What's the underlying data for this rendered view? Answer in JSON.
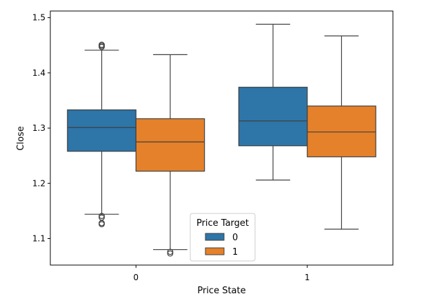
{
  "chart_data": {
    "type": "boxplot",
    "xlabel": "Price State",
    "ylabel": "Close",
    "categories": [
      "0",
      "1"
    ],
    "ylim": [
      1.052,
      1.512
    ],
    "yticks": [
      1.1,
      1.2,
      1.3,
      1.4,
      1.5
    ],
    "ytick_labels": [
      "1.1",
      "1.2",
      "1.3",
      "1.4",
      "1.5"
    ],
    "legend": {
      "title": "Price Target",
      "position": "bottom-center"
    },
    "series": [
      {
        "name": "0",
        "color": "#2e75a8",
        "boxes": [
          {
            "category": "0",
            "whisker_low": 1.144,
            "q1": 1.258,
            "median": 1.301,
            "q3": 1.333,
            "whisker_high": 1.441,
            "outliers": [
              1.126,
              1.128,
              1.138,
              1.141,
              1.447,
              1.449,
              1.451
            ]
          },
          {
            "category": "1",
            "whisker_low": 1.206,
            "q1": 1.268,
            "median": 1.313,
            "q3": 1.374,
            "whisker_high": 1.488,
            "outliers": []
          }
        ]
      },
      {
        "name": "1",
        "color": "#e5812a",
        "boxes": [
          {
            "category": "0",
            "whisker_low": 1.08,
            "q1": 1.222,
            "median": 1.275,
            "q3": 1.317,
            "whisker_high": 1.433,
            "outliers": [
              1.073,
              1.076
            ]
          },
          {
            "category": "1",
            "whisker_low": 1.117,
            "q1": 1.248,
            "median": 1.293,
            "q3": 1.34,
            "whisker_high": 1.467,
            "outliers": []
          }
        ]
      }
    ]
  }
}
